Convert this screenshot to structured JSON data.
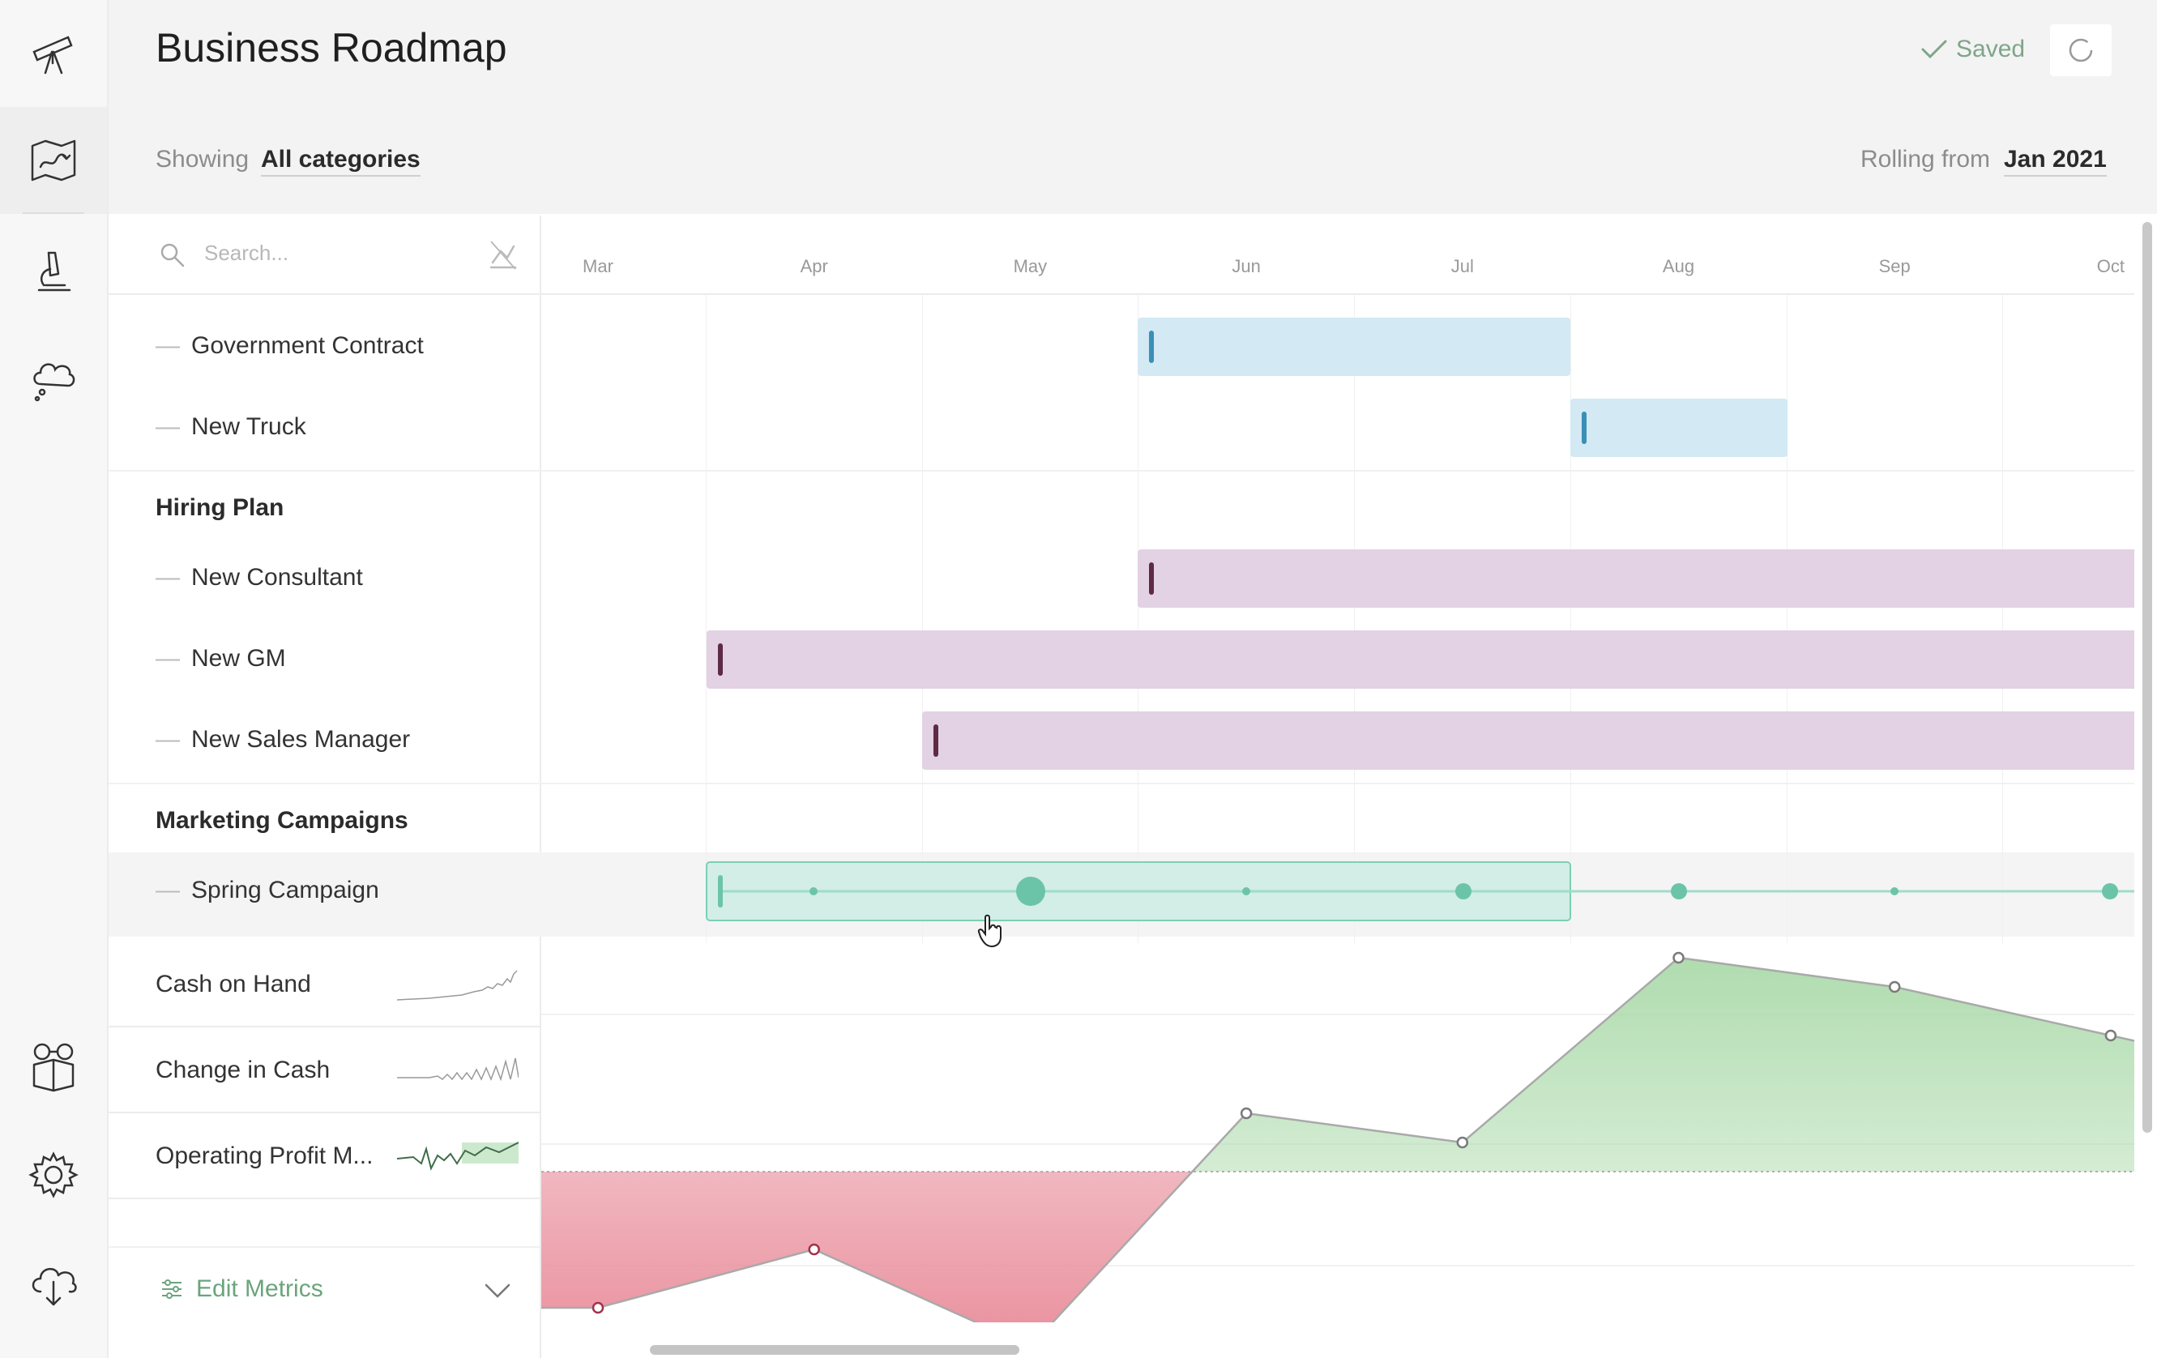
{
  "app": {
    "title": "Business Roadmap",
    "status": "Saved"
  },
  "filters": {
    "showing_label": "Showing",
    "showing_value": "All categories",
    "rolling_label": "Rolling from",
    "rolling_value": "Jan 2021"
  },
  "sidebar_icons": [
    "telescope-icon",
    "roadmap-map-icon",
    "microscope-icon",
    "thought-cloud-icon",
    "glasses-book-icon",
    "gear-icon",
    "cloud-download-icon"
  ],
  "search": {
    "placeholder": "Search..."
  },
  "timeline": {
    "months": [
      "Mar",
      "Apr",
      "May",
      "Jun",
      "Jul",
      "Aug",
      "Sep",
      "Oct"
    ]
  },
  "rows": {
    "government_contract": "Government Contract",
    "new_truck": "New Truck",
    "hiring_plan": "Hiring Plan",
    "new_consultant": "New Consultant",
    "new_gm": "New GM",
    "new_sales_manager": "New Sales Manager",
    "marketing_campaigns": "Marketing Campaigns",
    "spring_campaign": "Spring Campaign"
  },
  "metrics": {
    "cash_on_hand": "Cash on Hand",
    "change_in_cash": "Change in Cash",
    "operating_profit": "Operating Profit M...",
    "edit_label": "Edit Metrics"
  },
  "colors": {
    "blue_bar": "#d3e9f4",
    "blue_handle": "#3a8fb7",
    "purple_bar": "#e2d2e4",
    "purple_handle": "#5e2a45",
    "teal_bar": "#d2eee6",
    "teal_accent": "#6cc4a8",
    "positive_area": "#a7d8a6",
    "negative_area": "#e88a98",
    "accent_green": "#6aa57c"
  },
  "chart_data": {
    "type": "area",
    "x": [
      "Mar",
      "Apr",
      "May",
      "Jun",
      "Jul",
      "Aug",
      "Sep",
      "Oct"
    ],
    "series": [
      {
        "values": [
          -0.7,
          -0.4,
          -0.9,
          0.3,
          0.15,
          1.1,
          0.95,
          0.7
        ]
      }
    ],
    "xlabel": "",
    "ylabel": ""
  }
}
